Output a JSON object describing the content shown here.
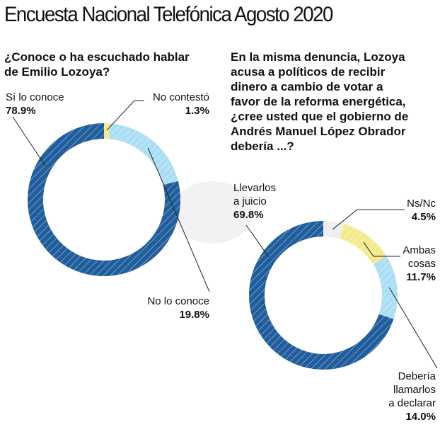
{
  "title": "Encuesta Nacional Telefónica Agosto 2020",
  "colors": {
    "dark_blue": "#1f5d9c",
    "light_blue": "#a9def4",
    "yellow": "#f4ea8c",
    "gray": "#efefef"
  },
  "chart_data": [
    {
      "type": "pie",
      "donut": true,
      "question": [
        "¿Conoce o ha escuchado hablar",
        "de Emilio Lozoya?"
      ],
      "slices": [
        {
          "label": "No contestó",
          "value": 1.3,
          "display": "1.3%",
          "color": "yellow"
        },
        {
          "label": "No lo conoce",
          "value": 19.8,
          "display": "19.8%",
          "color": "light_blue"
        },
        {
          "label": "Sí lo conoce",
          "value": 78.9,
          "display": "78.9%",
          "color": "dark_blue"
        }
      ]
    },
    {
      "type": "pie",
      "donut": true,
      "question": [
        "En la misma denuncia, Lozoya",
        "acusa a políticos de recibir",
        "dinero a cambio de votar a",
        "favor de la reforma energética,",
        "¿cree usted que el gobierno de",
        "Andrés Manuel López Obrador",
        "debería ...?"
      ],
      "slices": [
        {
          "label": "Ns/Nc",
          "value": 4.5,
          "display": "4.5%",
          "color": "gray"
        },
        {
          "label": "Ambas cosas",
          "label_lines": [
            "Ambas",
            "cosas"
          ],
          "value": 11.7,
          "display": "11.7%",
          "color": "yellow"
        },
        {
          "label": "Debería llamarlos a declarar",
          "label_lines": [
            "Debería",
            "llamarlos",
            "a declarar"
          ],
          "value": 14.0,
          "display": "14.0%",
          "color": "light_blue"
        },
        {
          "label": "Llevarlos a juicio",
          "label_lines": [
            "Llevarlos",
            "a juicio"
          ],
          "value": 69.8,
          "display": "69.8%",
          "color": "dark_blue"
        }
      ]
    }
  ]
}
